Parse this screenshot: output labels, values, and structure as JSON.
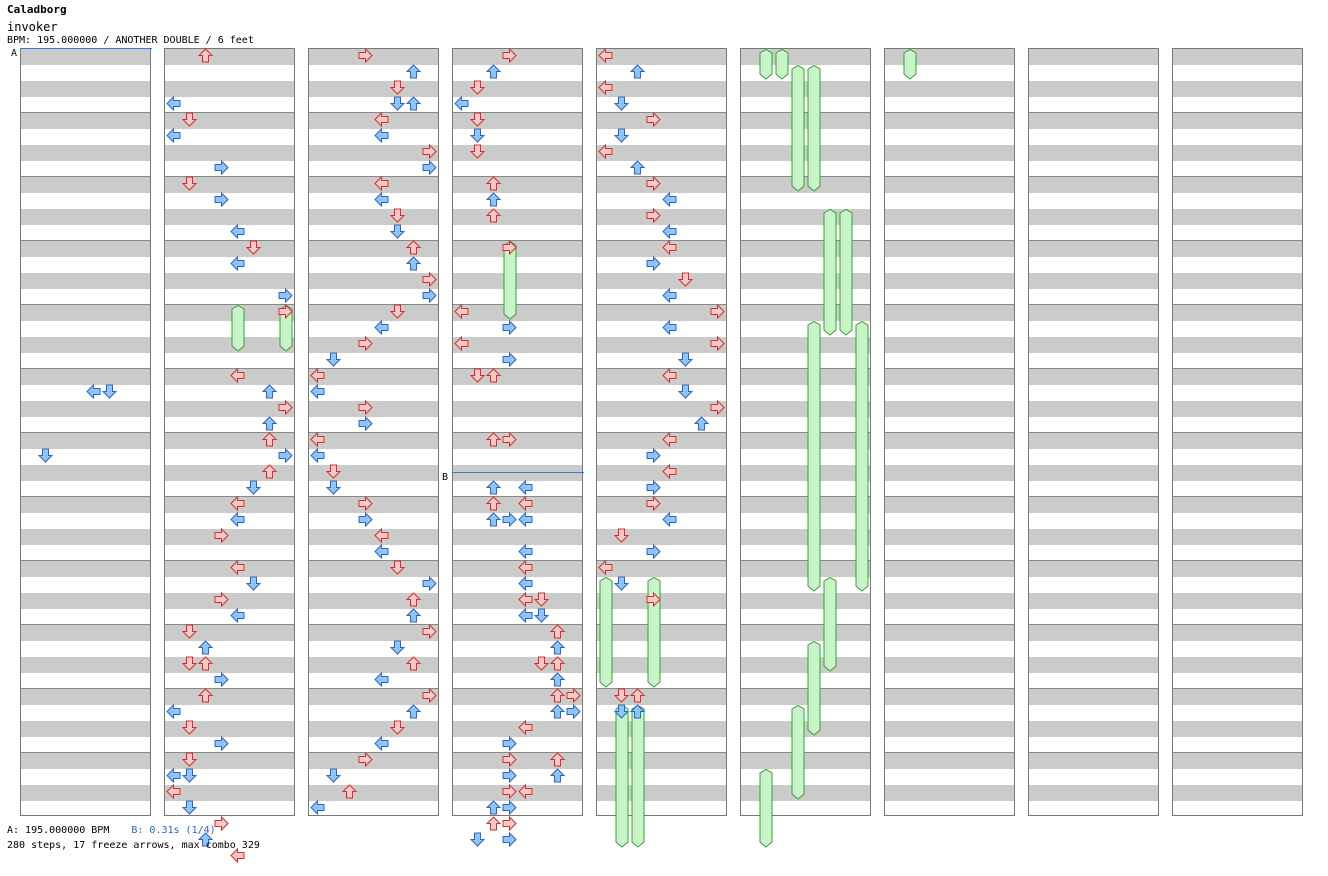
{
  "song": {
    "title": "Caladborg",
    "artist": "invoker",
    "meta": "BPM: 195.000000 / ANOTHER DOUBLE / 6 feet"
  },
  "markers": [
    {
      "label": "A"
    },
    {
      "label": "B"
    }
  ],
  "footer": {
    "bpm_text": "A: 195.000000 BPM",
    "stop_text": "B: 0.31s (1/4)",
    "stats": "280 steps, 17 freeze arrows, max combo 329"
  },
  "colors": {
    "arrow_red_fill": "#ffc8c8",
    "arrow_red_stroke": "#d03030",
    "arrow_blue_fill": "#8fc4ff",
    "arrow_blue_stroke": "#2a66c8",
    "freeze_fill": "#c8f5c8",
    "freeze_stroke": "#35a035",
    "marker_line": "#3a7ad0"
  },
  "chart": {
    "lanes": 8,
    "lane_order": [
      "left",
      "down",
      "up",
      "right",
      "left",
      "down",
      "up",
      "right"
    ],
    "notes": [
      [
        0,
        21,
        4
      ],
      [
        0,
        21,
        5
      ],
      [
        0,
        25,
        1
      ],
      [
        1,
        0,
        2
      ],
      [
        1,
        3,
        0
      ],
      [
        1,
        4,
        1
      ],
      [
        1,
        5,
        0
      ],
      [
        1,
        7,
        3
      ],
      [
        1,
        8,
        1
      ],
      [
        1,
        9,
        3
      ],
      [
        1,
        11,
        4
      ],
      [
        1,
        12,
        5
      ],
      [
        1,
        13,
        4
      ],
      [
        1,
        15,
        7
      ],
      [
        1,
        16,
        7
      ],
      [
        1,
        20,
        4
      ],
      [
        1,
        21,
        6
      ],
      [
        1,
        22,
        7
      ],
      [
        1,
        23,
        6
      ],
      [
        1,
        24,
        6
      ],
      [
        1,
        25,
        7
      ],
      [
        1,
        26,
        6
      ],
      [
        1,
        27,
        5
      ],
      [
        1,
        28,
        4
      ],
      [
        1,
        29,
        4
      ],
      [
        1,
        30,
        3
      ],
      [
        1,
        32,
        4
      ],
      [
        1,
        33,
        5
      ],
      [
        1,
        34,
        3
      ],
      [
        1,
        35,
        4
      ],
      [
        1,
        36,
        1
      ],
      [
        1,
        37,
        2
      ],
      [
        1,
        38,
        1
      ],
      [
        1,
        38,
        2
      ],
      [
        1,
        39,
        3
      ],
      [
        1,
        40,
        2
      ],
      [
        1,
        41,
        0
      ],
      [
        1,
        42,
        1
      ],
      [
        1,
        43,
        3
      ],
      [
        1,
        44,
        1
      ],
      [
        1,
        45,
        0
      ],
      [
        1,
        45,
        1
      ],
      [
        1,
        46,
        0
      ],
      [
        1,
        47,
        1
      ],
      [
        1,
        48,
        3
      ],
      [
        1,
        49,
        2
      ],
      [
        1,
        50,
        4
      ],
      [
        2,
        0,
        3
      ],
      [
        2,
        1,
        6
      ],
      [
        2,
        2,
        5
      ],
      [
        2,
        3,
        5
      ],
      [
        2,
        3,
        6
      ],
      [
        2,
        4,
        4
      ],
      [
        2,
        5,
        4
      ],
      [
        2,
        6,
        7
      ],
      [
        2,
        7,
        7
      ],
      [
        2,
        8,
        4
      ],
      [
        2,
        9,
        4
      ],
      [
        2,
        10,
        5
      ],
      [
        2,
        11,
        5
      ],
      [
        2,
        12,
        6
      ],
      [
        2,
        13,
        6
      ],
      [
        2,
        14,
        7
      ],
      [
        2,
        15,
        7
      ],
      [
        2,
        16,
        5
      ],
      [
        2,
        17,
        4
      ],
      [
        2,
        18,
        3
      ],
      [
        2,
        19,
        1
      ],
      [
        2,
        20,
        0
      ],
      [
        2,
        21,
        0
      ],
      [
        2,
        22,
        3
      ],
      [
        2,
        23,
        3
      ],
      [
        2,
        24,
        0
      ],
      [
        2,
        25,
        0
      ],
      [
        2,
        26,
        1
      ],
      [
        2,
        27,
        1
      ],
      [
        2,
        28,
        3
      ],
      [
        2,
        29,
        3
      ],
      [
        2,
        30,
        4
      ],
      [
        2,
        31,
        4
      ],
      [
        2,
        32,
        5
      ],
      [
        2,
        33,
        7
      ],
      [
        2,
        34,
        6
      ],
      [
        2,
        35,
        6
      ],
      [
        2,
        36,
        7
      ],
      [
        2,
        37,
        5
      ],
      [
        2,
        38,
        6
      ],
      [
        2,
        39,
        4
      ],
      [
        2,
        40,
        7
      ],
      [
        2,
        41,
        6
      ],
      [
        2,
        42,
        5
      ],
      [
        2,
        43,
        4
      ],
      [
        2,
        44,
        3
      ],
      [
        2,
        45,
        1
      ],
      [
        2,
        46,
        2
      ],
      [
        2,
        47,
        0
      ],
      [
        3,
        0,
        3
      ],
      [
        3,
        1,
        2
      ],
      [
        3,
        2,
        1
      ],
      [
        3,
        3,
        0
      ],
      [
        3,
        4,
        1
      ],
      [
        3,
        5,
        1
      ],
      [
        3,
        6,
        1
      ],
      [
        3,
        8,
        2
      ],
      [
        3,
        9,
        2
      ],
      [
        3,
        10,
        2
      ],
      [
        3,
        12,
        3
      ],
      [
        3,
        16,
        0
      ],
      [
        3,
        17,
        3
      ],
      [
        3,
        18,
        0
      ],
      [
        3,
        19,
        3
      ],
      [
        3,
        20,
        1
      ],
      [
        3,
        20,
        2
      ],
      [
        3,
        24,
        2
      ],
      [
        3,
        24,
        3
      ],
      [
        3,
        27,
        2
      ],
      [
        3,
        28,
        2
      ],
      [
        3,
        27,
        4
      ],
      [
        3,
        28,
        4
      ],
      [
        3,
        29,
        2
      ],
      [
        3,
        29,
        3
      ],
      [
        3,
        29,
        4
      ],
      [
        3,
        31,
        4
      ],
      [
        3,
        32,
        4
      ],
      [
        3,
        33,
        4
      ],
      [
        3,
        34,
        4
      ],
      [
        3,
        34,
        5
      ],
      [
        3,
        35,
        4
      ],
      [
        3,
        35,
        5
      ],
      [
        3,
        36,
        6
      ],
      [
        3,
        37,
        6
      ],
      [
        3,
        38,
        5
      ],
      [
        3,
        38,
        6
      ],
      [
        3,
        39,
        6
      ],
      [
        3,
        40,
        6
      ],
      [
        3,
        40,
        7
      ],
      [
        3,
        41,
        6
      ],
      [
        3,
        41,
        7
      ],
      [
        3,
        42,
        4
      ],
      [
        3,
        43,
        3
      ],
      [
        3,
        44,
        3
      ],
      [
        3,
        44,
        6
      ],
      [
        3,
        45,
        3
      ],
      [
        3,
        45,
        6
      ],
      [
        3,
        46,
        3
      ],
      [
        3,
        46,
        4
      ],
      [
        3,
        47,
        2
      ],
      [
        3,
        47,
        3
      ],
      [
        3,
        48,
        2
      ],
      [
        3,
        48,
        3
      ],
      [
        3,
        49,
        1
      ],
      [
        3,
        49,
        3
      ],
      [
        4,
        0,
        0
      ],
      [
        4,
        1,
        2
      ],
      [
        4,
        2,
        0
      ],
      [
        4,
        3,
        1
      ],
      [
        4,
        4,
        3
      ],
      [
        4,
        5,
        1
      ],
      [
        4,
        6,
        0
      ],
      [
        4,
        7,
        2
      ],
      [
        4,
        8,
        3
      ],
      [
        4,
        9,
        4
      ],
      [
        4,
        10,
        3
      ],
      [
        4,
        11,
        4
      ],
      [
        4,
        12,
        4
      ],
      [
        4,
        13,
        3
      ],
      [
        4,
        14,
        5
      ],
      [
        4,
        15,
        4
      ],
      [
        4,
        16,
        7
      ],
      [
        4,
        17,
        4
      ],
      [
        4,
        18,
        7
      ],
      [
        4,
        19,
        5
      ],
      [
        4,
        20,
        4
      ],
      [
        4,
        21,
        5
      ],
      [
        4,
        22,
        7
      ],
      [
        4,
        23,
        6
      ],
      [
        4,
        24,
        4
      ],
      [
        4,
        25,
        3
      ],
      [
        4,
        26,
        4
      ],
      [
        4,
        27,
        3
      ],
      [
        4,
        28,
        3
      ],
      [
        4,
        29,
        4
      ],
      [
        4,
        30,
        1
      ],
      [
        4,
        31,
        3
      ],
      [
        4,
        32,
        0
      ],
      [
        4,
        33,
        1
      ],
      [
        4,
        34,
        3
      ],
      [
        4,
        40,
        1
      ],
      [
        4,
        40,
        2
      ],
      [
        4,
        41,
        1
      ],
      [
        4,
        41,
        2
      ]
    ],
    "freezes": [
      [
        3,
        12,
        16,
        3
      ],
      [
        1,
        16,
        18,
        4
      ],
      [
        1,
        16,
        18,
        7
      ],
      [
        4,
        33,
        39,
        0
      ],
      [
        4,
        33,
        39,
        3
      ],
      [
        4,
        41,
        49,
        1
      ],
      [
        4,
        41,
        49,
        2
      ],
      [
        5,
        0,
        1,
        1
      ],
      [
        5,
        0,
        1,
        2
      ],
      [
        5,
        1,
        8,
        3
      ],
      [
        5,
        1,
        8,
        4
      ],
      [
        5,
        10,
        17,
        5
      ],
      [
        5,
        10,
        17,
        6
      ],
      [
        5,
        17,
        33,
        4
      ],
      [
        5,
        17,
        33,
        7
      ],
      [
        5,
        33,
        38,
        5
      ],
      [
        5,
        37,
        42,
        4
      ],
      [
        5,
        41,
        46,
        3
      ],
      [
        5,
        45,
        49,
        1
      ],
      [
        6,
        0,
        1,
        1
      ]
    ]
  }
}
